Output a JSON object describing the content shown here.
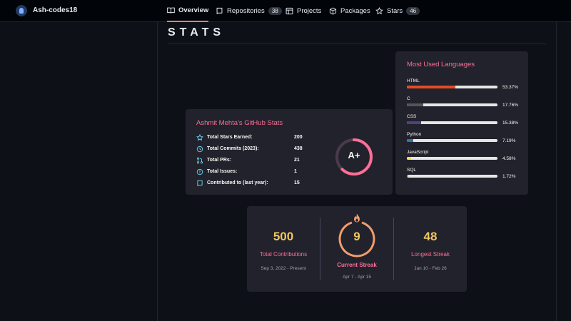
{
  "header": {
    "username": "Ash-codes18",
    "tabs": [
      {
        "label": "Overview",
        "icon": "book-icon",
        "active": true
      },
      {
        "label": "Repositories",
        "icon": "repo-icon",
        "count": "38"
      },
      {
        "label": "Projects",
        "icon": "table-icon"
      },
      {
        "label": "Packages",
        "icon": "package-icon"
      },
      {
        "label": "Stars",
        "icon": "star-icon",
        "count": "46"
      }
    ]
  },
  "section": {
    "heading": "STATS"
  },
  "github_stats": {
    "title": "Ashmit Mehta's GitHub Stats",
    "rows": [
      {
        "icon": "star-icon",
        "label": "Total Stars Earned:",
        "value": "200"
      },
      {
        "icon": "history-icon",
        "label": "Total Commits (2023):",
        "value": "438"
      },
      {
        "icon": "pull-request-icon",
        "label": "Total PRs:",
        "value": "21"
      },
      {
        "icon": "issue-icon",
        "label": "Total Issues:",
        "value": "1"
      },
      {
        "icon": "repo-icon",
        "label": "Contributed to (last year):",
        "value": "15"
      }
    ],
    "rank": "A+",
    "rank_progress": 0.62,
    "colors": {
      "title": "#ff6e96",
      "ring": "#ff6e96",
      "icon": "#79dafa"
    }
  },
  "languages": {
    "title": "Most Used Languages",
    "items": [
      {
        "name": "HTML",
        "percent": 53.37,
        "percent_label": "53.37%",
        "color": "#e34c26"
      },
      {
        "name": "C",
        "percent": 17.76,
        "percent_label": "17.76%",
        "color": "#555555"
      },
      {
        "name": "CSS",
        "percent": 15.38,
        "percent_label": "15.38%",
        "color": "#563d7c"
      },
      {
        "name": "Python",
        "percent": 7.19,
        "percent_label": "7.19%",
        "color": "#3572a5"
      },
      {
        "name": "JavaScript",
        "percent": 4.58,
        "percent_label": "4.58%",
        "color": "#f1e05a"
      },
      {
        "name": "SQL",
        "percent": 1.72,
        "percent_label": "1.72%",
        "color": "#e38c00"
      }
    ]
  },
  "streak": {
    "total": {
      "value": "500",
      "label": "Total Contributions",
      "range": "Sep 3, 2022 - Present"
    },
    "current": {
      "value": "9",
      "label": "Current Streak",
      "range": "Apr 7 - Apr 15"
    },
    "longest": {
      "value": "48",
      "label": "Longest Streak",
      "range": "Jan 10 - Feb 26"
    },
    "colors": {
      "value": "#f1c65b",
      "label": "#ff6e96",
      "ring": "#f39c6b",
      "date": "#9ea3b3"
    }
  }
}
